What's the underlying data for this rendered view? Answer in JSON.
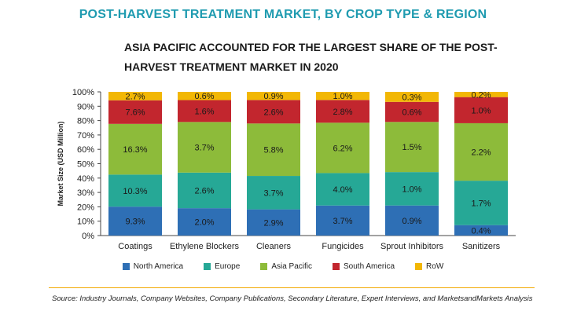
{
  "header": {
    "title": "POST-HARVEST TREATMENT MARKET, BY CROP TYPE & REGION",
    "subtitle": "ASIA PACIFIC ACCOUNTED FOR THE LARGEST SHARE OF THE POST-HARVEST TREATMENT MARKET IN 2020"
  },
  "footer": {
    "source": "Source: Industry Journals, Company Websites, Company Publications, Secondary Literature, Expert Interviews, and MarketsandMarkets Analysis"
  },
  "colors": {
    "title": "#1f9bb0",
    "divider": "#f2a900"
  },
  "chart_data": {
    "type": "bar",
    "stacked": true,
    "percent_scale": true,
    "ylabel": "Market Size (USD Million)",
    "xlabel": "",
    "ylim": [
      0,
      100
    ],
    "yticks": [
      "0%",
      "10%",
      "20%",
      "30%",
      "40%",
      "50%",
      "60%",
      "70%",
      "80%",
      "90%",
      "100%"
    ],
    "legend_position": "bottom",
    "categories": [
      "Coatings",
      "Ethylene Blockers",
      "Cleaners",
      "Fungicides",
      "Sprout Inhibitors",
      "Sanitizers"
    ],
    "series": [
      {
        "name": "North America",
        "color": "#2e6fb5",
        "values": [
          9.3,
          2.0,
          2.9,
          3.7,
          0.9,
          0.4
        ],
        "labels": [
          "9.3%",
          "2.0%",
          "2.9%",
          "3.7%",
          "0.9%",
          "0.4%"
        ]
      },
      {
        "name": "Europe",
        "color": "#26a896",
        "values": [
          10.3,
          2.6,
          3.7,
          4.0,
          1.0,
          1.7
        ],
        "labels": [
          "10.3%",
          "2.6%",
          "3.7%",
          "4.0%",
          "1.0%",
          "1.7%"
        ]
      },
      {
        "name": "Asia Pacific",
        "color": "#8dbb3a",
        "values": [
          16.3,
          3.7,
          5.8,
          6.2,
          1.5,
          2.2
        ],
        "labels": [
          "16.3%",
          "3.7%",
          "5.8%",
          "6.2%",
          "1.5%",
          "2.2%"
        ]
      },
      {
        "name": "South America",
        "color": "#c2262e",
        "values": [
          7.6,
          1.6,
          2.6,
          2.8,
          0.6,
          1.0
        ],
        "labels": [
          "7.6%",
          "1.6%",
          "2.6%",
          "2.8%",
          "0.6%",
          "1.0%"
        ]
      },
      {
        "name": "RoW",
        "color": "#f2b705",
        "values": [
          2.7,
          0.6,
          0.9,
          1.0,
          0.3,
          0.2
        ],
        "labels": [
          "2.7%",
          "0.6%",
          "0.9%",
          "1.0%",
          "0.3%",
          "0.2%"
        ]
      }
    ]
  }
}
